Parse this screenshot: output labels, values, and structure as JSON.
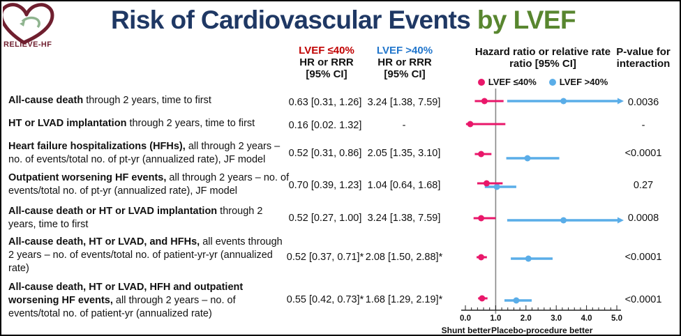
{
  "logo": {
    "text": "RELIEVE-HF"
  },
  "title": {
    "main": "Risk of Cardiovascular Events ",
    "suffix": "by LVEF"
  },
  "columns": {
    "le40": {
      "title": "LVEF ≤40%",
      "sub1": "HR or RRR",
      "sub2": "[95% CI]"
    },
    "gt40": {
      "title": "LVEF >40%",
      "sub1": "HR or RRR",
      "sub2": "[95% CI]"
    },
    "hazard": {
      "line1": "Hazard ratio or relative rate",
      "line2": "ratio [95% CI]"
    },
    "pvalue": {
      "line1": "P-value for",
      "line2": "interaction"
    }
  },
  "colors": {
    "pink": "#e9176a",
    "blue": "#5aade8",
    "navy": "#1f3864",
    "green": "#58862f",
    "red_header": "#c00000",
    "blue_header": "#2176cc",
    "ref_line": "#888888"
  },
  "chart_data": {
    "type": "scatter",
    "subtype": "forest-plot",
    "title": "Hazard ratio or relative rate ratio [95% CI]",
    "x_axis": {
      "range": [
        0,
        5
      ],
      "major_ticks": [
        0,
        1,
        2,
        3,
        4,
        5
      ],
      "tick_labels": [
        "0.0",
        "1.0",
        "2.0",
        "3.0",
        "4.0",
        "5.0"
      ],
      "minor_tick_step": 0.2,
      "reference_line": 1.0
    },
    "direction_labels": {
      "left": "Shunt better",
      "right": "Placebo-procedure better"
    },
    "legend": [
      {
        "name": "LVEF ≤40%",
        "color": "#e9176a"
      },
      {
        "name": "LVEF >40%",
        "color": "#5aade8"
      }
    ],
    "rows": [
      {
        "label_bold": "All-cause death",
        "label_rest": " through 2 years, time to first",
        "le40_text": "0.63 [0.31, 1.26]",
        "gt40_text": "3.24 [1.38, 7.59]",
        "p_text": "0.0036",
        "le40": {
          "est": 0.63,
          "lo": 0.31,
          "hi": 1.26
        },
        "gt40": {
          "est": 3.24,
          "lo": 1.38,
          "hi": 7.59
        }
      },
      {
        "label_bold": "HT or LVAD implantation",
        "label_rest": " through 2 years, time to first",
        "le40_text": "0.16 [0.02. 1.32]",
        "gt40_text": "-",
        "p_text": "-",
        "le40": {
          "est": 0.16,
          "lo": 0.02,
          "hi": 1.32
        },
        "gt40": null
      },
      {
        "label_bold": "Heart failure hospitalizations (HFHs),",
        "label_rest": " all through 2 years – no. of events/total no. of pt-yr (annualized rate), JF model",
        "le40_text": "0.52 [0.31, 0.86]",
        "gt40_text": "2.05 [1.35, 3.10]",
        "p_text": "<0.0001",
        "le40": {
          "est": 0.52,
          "lo": 0.31,
          "hi": 0.86
        },
        "gt40": {
          "est": 2.05,
          "lo": 1.35,
          "hi": 3.1
        }
      },
      {
        "label_bold": "Outpatient worsening HF events,",
        "label_rest": " all through 2 years – no. of events/total no. of pt-yr (annualized rate), JF model",
        "le40_text": "0.70 [0.39, 1.23]",
        "gt40_text": "1.04 [0.64, 1.68]",
        "p_text": "0.27",
        "le40": {
          "est": 0.7,
          "lo": 0.39,
          "hi": 1.23
        },
        "gt40": {
          "est": 1.04,
          "lo": 0.64,
          "hi": 1.68
        }
      },
      {
        "label_bold": "All-cause death or HT or LVAD implantation",
        "label_rest": " through 2 years, time to first",
        "le40_text": "0.52 [0.27, 1.00]",
        "gt40_text": "3.24 [1.38, 7.59]",
        "p_text": "0.0008",
        "le40": {
          "est": 0.52,
          "lo": 0.27,
          "hi": 1.0
        },
        "gt40": {
          "est": 3.24,
          "lo": 1.38,
          "hi": 7.59
        }
      },
      {
        "label_bold": "All-cause death, HT or LVAD, and HFHs,",
        "label_rest": " all events through 2 years – no. of events/total no. of patient-yr-yr (annualized rate)",
        "le40_text": "0.52 [0.37, 0.71]*",
        "gt40_text": "2.08 [1.50, 2.88]*",
        "p_text": "<0.0001",
        "le40": {
          "est": 0.52,
          "lo": 0.37,
          "hi": 0.71
        },
        "gt40": {
          "est": 2.08,
          "lo": 1.5,
          "hi": 2.88
        }
      },
      {
        "label_bold": "All-cause death, HT or LVAD, HFH and outpatient worsening HF events,",
        "label_rest": " all through 2 years – no.  of events/total no. of patient-yr (annualized rate)",
        "le40_text": "0.55 [0.42, 0.73]*",
        "gt40_text": "1.68 [1.29, 2.19]*",
        "p_text": "<0.0001",
        "le40": {
          "est": 0.55,
          "lo": 0.42,
          "hi": 0.73
        },
        "gt40": {
          "est": 1.68,
          "lo": 1.29,
          "hi": 2.19
        }
      }
    ]
  }
}
